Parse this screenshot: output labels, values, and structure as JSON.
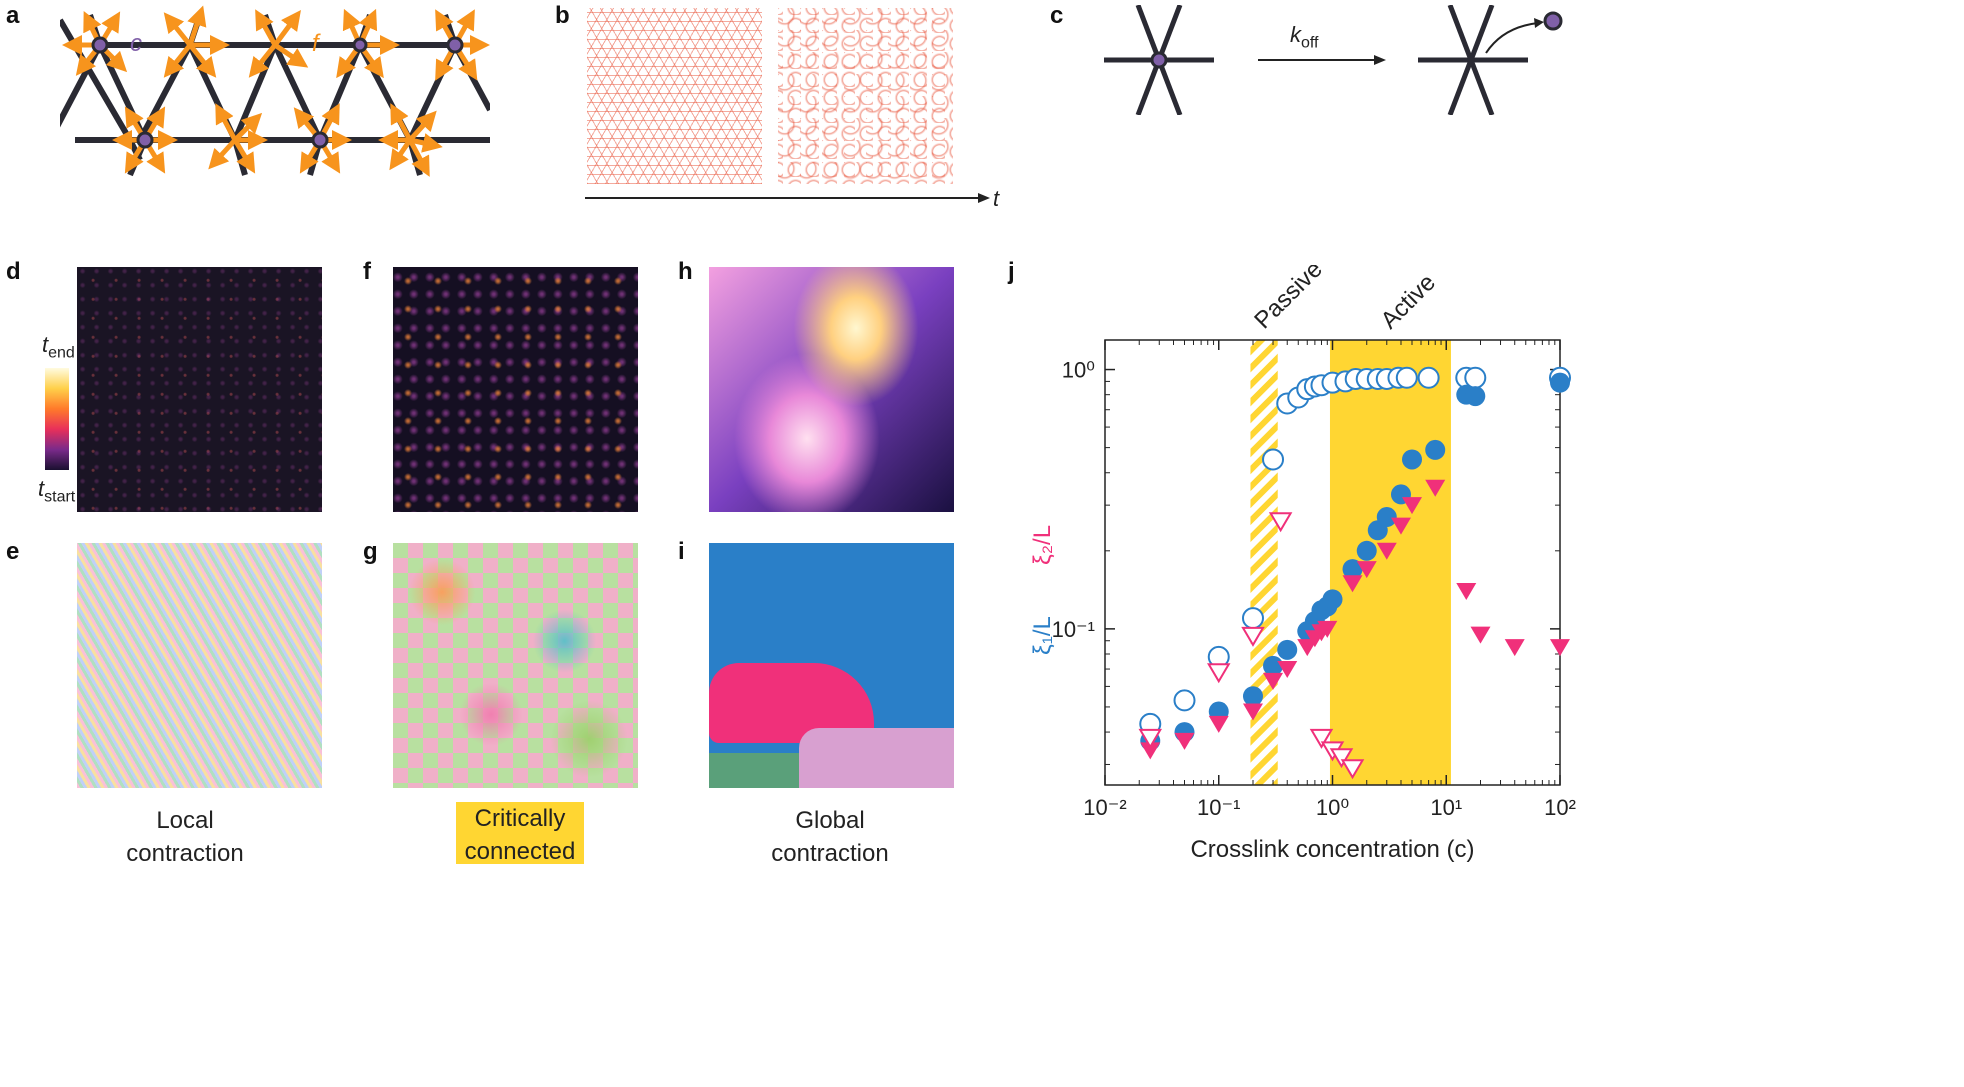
{
  "panel_labels": {
    "a": "a",
    "b": "b",
    "c": "c",
    "d": "d",
    "e": "e",
    "f": "f",
    "g": "g",
    "h": "h",
    "i": "i",
    "j": "j"
  },
  "panel_a": {
    "label_c": "c",
    "label_f": "f"
  },
  "panel_b": {
    "axis_label": "t"
  },
  "panel_c": {
    "rate_label": "k",
    "rate_sub": "off"
  },
  "colorbar": {
    "top_label": "t",
    "top_sub": "end",
    "bottom_label": "t",
    "bottom_sub": "start"
  },
  "captions": {
    "local_1": "Local",
    "local_2": "contraction",
    "critical_1": "Critically",
    "critical_2": "connected",
    "global_1": "Global",
    "global_2": "contraction"
  },
  "colors": {
    "orange": "#f7941d",
    "purple": "#8060a8",
    "network_red": "#e8553c",
    "highlight": "#ffd632",
    "blue": "#2a7fc8",
    "pink": "#f0307a",
    "dark": "#2a2a33"
  },
  "chart_data": {
    "type": "scatter",
    "title": "",
    "xlabel": "Crosslink concentration (c)",
    "ylabel_1": "ξ₁/L",
    "ylabel_2": "ξ₂/L",
    "xscale": "log",
    "yscale": "log",
    "xlim": [
      0.01,
      100
    ],
    "ylim": [
      0.025,
      1.3
    ],
    "xticks": [
      "10⁻²",
      "10⁻¹",
      "10⁰",
      "10¹",
      "10²"
    ],
    "yticks": [
      "10⁻¹",
      "10⁰"
    ],
    "regions": [
      {
        "name": "Passive",
        "x": [
          0.19,
          0.33
        ],
        "style": "hatched"
      },
      {
        "name": "Active",
        "x": [
          0.95,
          11
        ],
        "style": "filled"
      }
    ],
    "series": [
      {
        "marker": "open-circle",
        "color": "#2a7fc8",
        "x": [
          0.025,
          0.05,
          0.1,
          0.2,
          0.3,
          0.4,
          0.5,
          0.6,
          0.7,
          0.8,
          1,
          1.3,
          1.6,
          2,
          2.5,
          3,
          3.8,
          4.5,
          7,
          15,
          18,
          100
        ],
        "y": [
          0.043,
          0.053,
          0.078,
          0.11,
          0.45,
          0.74,
          0.78,
          0.84,
          0.86,
          0.87,
          0.89,
          0.9,
          0.92,
          0.92,
          0.92,
          0.92,
          0.93,
          0.93,
          0.93,
          0.93,
          0.93,
          0.93
        ]
      },
      {
        "marker": "filled-circle",
        "color": "#2a7fc8",
        "x": [
          0.025,
          0.05,
          0.1,
          0.2,
          0.3,
          0.4,
          0.6,
          0.7,
          0.8,
          0.9,
          1,
          1.5,
          2,
          2.5,
          3,
          4,
          5,
          8,
          15,
          18,
          100
        ],
        "y": [
          0.037,
          0.04,
          0.048,
          0.055,
          0.072,
          0.083,
          0.098,
          0.107,
          0.118,
          0.122,
          0.13,
          0.17,
          0.2,
          0.24,
          0.27,
          0.33,
          0.45,
          0.49,
          0.8,
          0.79,
          0.89
        ]
      },
      {
        "marker": "filled-triangle",
        "color": "#f0307a",
        "x": [
          0.025,
          0.05,
          0.1,
          0.2,
          0.3,
          0.4,
          0.6,
          0.7,
          0.8,
          0.9,
          1.5,
          2,
          3,
          4,
          5,
          8,
          15,
          20,
          40,
          100
        ],
        "y": [
          0.034,
          0.037,
          0.043,
          0.048,
          0.063,
          0.07,
          0.085,
          0.092,
          0.097,
          0.1,
          0.15,
          0.17,
          0.2,
          0.25,
          0.3,
          0.35,
          0.14,
          0.095,
          0.085,
          0.085
        ]
      },
      {
        "marker": "open-triangle",
        "color": "#f0307a",
        "x": [
          0.025,
          0.1,
          0.2,
          0.35,
          0.8,
          1,
          1.2,
          1.5
        ],
        "y": [
          0.038,
          0.068,
          0.094,
          0.26,
          0.038,
          0.034,
          0.032,
          0.029
        ]
      }
    ]
  }
}
